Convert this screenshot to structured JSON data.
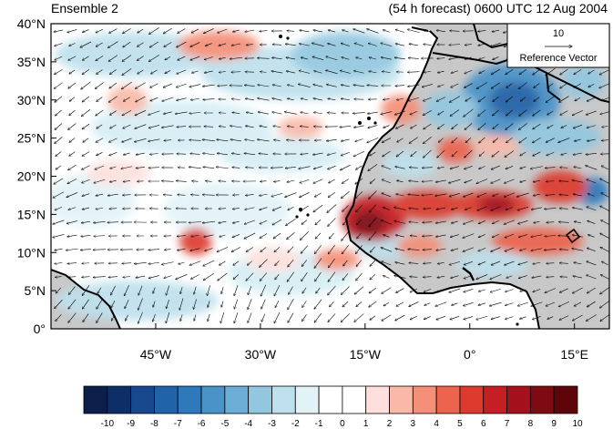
{
  "header": {
    "left_title": "Ensemble 2",
    "right_title": "(54 h forecast) 0600 UTC 12 Aug 2004"
  },
  "map": {
    "lat_ticks": [
      "40°N",
      "35°N",
      "30°N",
      "25°N",
      "20°N",
      "15°N",
      "10°N",
      "5°N",
      "0°"
    ],
    "lon_ticks": [
      "45°W",
      "30°W",
      "15°W",
      "0°",
      "15°E"
    ],
    "extent": {
      "lon": [
        -60,
        20
      ],
      "lat": [
        0,
        40
      ]
    },
    "reference_vector": {
      "magnitude": "10",
      "label": "Reference Vector"
    }
  },
  "colorbar": {
    "labels": [
      "-10",
      "-9",
      "-8",
      "-7",
      "-6",
      "-5",
      "-4",
      "-3",
      "-2",
      "-1",
      "0",
      "1",
      "2",
      "3",
      "4",
      "5",
      "6",
      "7",
      "8",
      "9",
      "10"
    ],
    "colors": [
      "#0b1f4a",
      "#0d2e66",
      "#17478c",
      "#2163a8",
      "#2f78bb",
      "#4a93c9",
      "#6caed6",
      "#93c7df",
      "#bee0ec",
      "#e2f3f8",
      "#ffffff",
      "#ffffff",
      "#fde0dd",
      "#f9b9a8",
      "#f48f78",
      "#ec634e",
      "#dc3a2e",
      "#c51f24",
      "#a4111c",
      "#7e0a14",
      "#5e0509"
    ]
  },
  "colors": {
    "land": "#c8c8c8",
    "coast": "#000000",
    "arrow": "#000000"
  }
}
